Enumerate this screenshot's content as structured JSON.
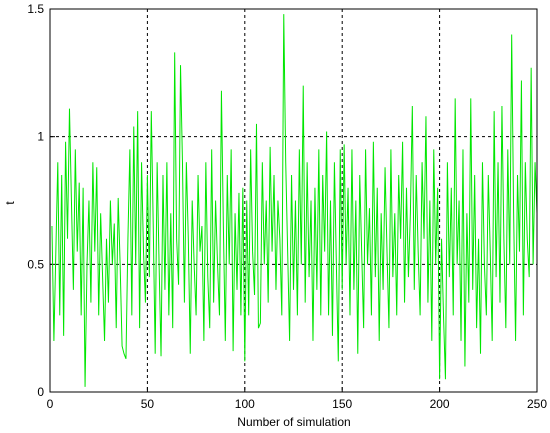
{
  "chart_data": {
    "type": "line",
    "xlabel": "Number of simulation",
    "ylabel": "t",
    "color": "#00e600",
    "grid": true,
    "xlim": [
      0,
      250
    ],
    "xticks": [
      0,
      50,
      100,
      150,
      200,
      250
    ],
    "ylim": [
      0,
      1.5
    ],
    "yticks": [
      0,
      0.5,
      1,
      1.5
    ],
    "x": [
      1,
      2,
      3,
      4,
      5,
      6,
      7,
      8,
      9,
      10,
      11,
      12,
      13,
      14,
      15,
      16,
      17,
      18,
      19,
      20,
      21,
      22,
      23,
      24,
      25,
      26,
      27,
      28,
      29,
      30,
      31,
      32,
      33,
      34,
      35,
      36,
      37,
      38,
      39,
      40,
      41,
      42,
      43,
      44,
      45,
      46,
      47,
      48,
      49,
      50,
      51,
      52,
      53,
      54,
      55,
      56,
      57,
      58,
      59,
      60,
      61,
      62,
      63,
      64,
      65,
      66,
      67,
      68,
      69,
      70,
      71,
      72,
      73,
      74,
      75,
      76,
      77,
      78,
      79,
      80,
      81,
      82,
      83,
      84,
      85,
      86,
      87,
      88,
      89,
      90,
      91,
      92,
      93,
      94,
      95,
      96,
      97,
      98,
      99,
      100,
      101,
      102,
      103,
      104,
      105,
      106,
      107,
      108,
      109,
      110,
      111,
      112,
      113,
      114,
      115,
      116,
      117,
      118,
      119,
      120,
      121,
      122,
      123,
      124,
      125,
      126,
      127,
      128,
      129,
      130,
      131,
      132,
      133,
      134,
      135,
      136,
      137,
      138,
      139,
      140,
      141,
      142,
      143,
      144,
      145,
      146,
      147,
      148,
      149,
      150,
      151,
      152,
      153,
      154,
      155,
      156,
      157,
      158,
      159,
      160,
      161,
      162,
      163,
      164,
      165,
      166,
      167,
      168,
      169,
      170,
      171,
      172,
      173,
      174,
      175,
      176,
      177,
      178,
      179,
      180,
      181,
      182,
      183,
      184,
      185,
      186,
      187,
      188,
      189,
      190,
      191,
      192,
      193,
      194,
      195,
      196,
      197,
      198,
      199,
      200,
      201,
      202,
      203,
      204,
      205,
      206,
      207,
      208,
      209,
      210,
      211,
      212,
      213,
      214,
      215,
      216,
      217,
      218,
      219,
      220,
      221,
      222,
      223,
      224,
      225,
      226,
      227,
      228,
      229,
      230,
      231,
      232,
      233,
      234,
      235,
      236,
      237,
      238,
      239,
      240,
      241,
      242,
      243,
      244,
      245,
      246,
      247,
      248,
      249,
      250
    ],
    "values": [
      0.65,
      0.2,
      0.55,
      0.9,
      0.3,
      0.85,
      0.22,
      0.98,
      0.6,
      1.11,
      0.75,
      0.4,
      0.95,
      0.55,
      0.82,
      0.3,
      0.8,
      0.02,
      0.5,
      0.75,
      0.35,
      0.9,
      0.55,
      0.88,
      0.3,
      0.7,
      0.45,
      0.2,
      0.6,
      0.35,
      0.75,
      0.5,
      0.66,
      0.25,
      0.76,
      0.5,
      0.18,
      0.15,
      0.13,
      0.6,
      0.95,
      0.3,
      1.04,
      0.5,
      1.1,
      0.25,
      0.9,
      0.55,
      0.35,
      0.85,
      0.45,
      1.1,
      0.65,
      0.15,
      0.9,
      0.5,
      0.14,
      0.85,
      0.4,
      0.9,
      0.3,
      0.7,
      0.25,
      1.33,
      0.6,
      0.42,
      1.28,
      0.9,
      0.35,
      0.9,
      0.6,
      0.15,
      0.75,
      0.5,
      0.3,
      0.85,
      0.55,
      0.65,
      0.2,
      0.9,
      0.45,
      0.25,
      0.95,
      0.35,
      0.75,
      0.5,
      0.3,
      1.18,
      0.65,
      0.2,
      0.85,
      0.5,
      0.95,
      0.16,
      0.7,
      0.4,
      0.78,
      0.3,
      0.8,
      0.12,
      0.75,
      0.3,
      0.95,
      0.55,
      0.38,
      1.05,
      0.25,
      0.27,
      0.9,
      0.5,
      0.75,
      0.35,
      0.96,
      0.55,
      0.85,
      0.4,
      0.75,
      0.6,
      0.3,
      1.48,
      0.9,
      0.55,
      0.2,
      0.85,
      0.4,
      0.75,
      0.3,
      0.95,
      0.5,
      1.2,
      0.35,
      0.9,
      0.45,
      0.75,
      0.2,
      0.8,
      0.4,
      0.95,
      0.3,
      0.85,
      0.55,
      1.02,
      0.3,
      0.75,
      0.22,
      0.9,
      0.5,
      0.12,
      0.95,
      0.4,
      0.97,
      0.5,
      0.8,
      0.3,
      0.95,
      0.4,
      0.75,
      0.15,
      0.85,
      0.55,
      0.25,
      0.95,
      0.5,
      0.72,
      0.3,
      0.98,
      0.45,
      0.8,
      0.2,
      0.7,
      0.4,
      0.88,
      0.55,
      0.25,
      0.95,
      0.45,
      0.7,
      0.3,
      0.85,
      0.6,
      0.98,
      0.35,
      0.8,
      0.45,
      0.7,
      1.12,
      0.4,
      0.85,
      0.55,
      0.3,
      0.9,
      0.6,
      1.08,
      0.35,
      0.75,
      0.2,
      0.95,
      0.5,
      0.8,
      0.05,
      0.6,
      0.3,
      0.05,
      0.9,
      0.45,
      0.8,
      0.3,
      1.15,
      0.5,
      0.75,
      0.2,
      0.95,
      0.1,
      0.7,
      0.35,
      1.15,
      0.4,
      0.85,
      0.25,
      0.6,
      0.15,
      0.9,
      0.5,
      0.3,
      0.85,
      0.55,
      0.2,
      1.1,
      0.45,
      0.9,
      0.35,
      1.12,
      0.6,
      0.25,
      0.95,
      0.5,
      1.4,
      0.7,
      0.2,
      0.85,
      0.55,
      1.22,
      0.3,
      0.9,
      0.6,
      0.45,
      1.27,
      0.5,
      0.9,
      0.7
    ]
  }
}
